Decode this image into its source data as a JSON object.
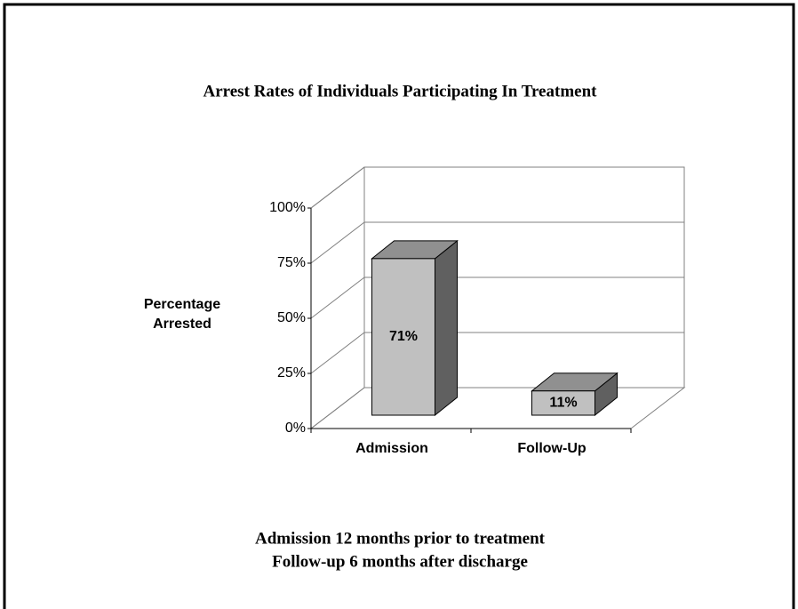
{
  "chart_data": {
    "type": "bar3d",
    "title": "Arrest Rates of Individuals Participating In Treatment",
    "y_label": "Percentage Arrested",
    "categories": [
      "Admission",
      "Follow-Up"
    ],
    "values": [
      71,
      11
    ],
    "value_labels": [
      "71%",
      "11%"
    ],
    "color": "#c0c0c0",
    "ylim": [
      0,
      100
    ],
    "yticks": [
      {
        "value": 0,
        "label": "0%"
      },
      {
        "value": 25,
        "label": "25%"
      },
      {
        "value": 50,
        "label": "50%"
      },
      {
        "value": 75,
        "label": "75%"
      },
      {
        "value": 100,
        "label": "100%"
      }
    ],
    "grid": true,
    "annotations": [
      "Admission 12 months prior to treatment",
      "Follow-up 6 months after discharge"
    ]
  }
}
